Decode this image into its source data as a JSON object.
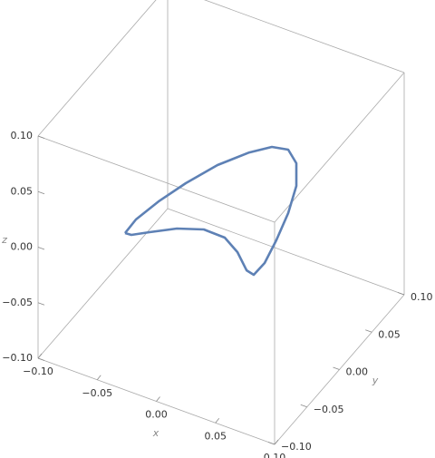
{
  "chart_data": {
    "type": "line3d",
    "x": [
      -0.0812,
      -0.072,
      -0.0529,
      -0.0299,
      -0.0031,
      0.0238,
      0.0429,
      0.0567,
      0.0636,
      0.0636,
      0.0567,
      0.0467,
      0.0368,
      0.0276,
      0.0215,
      0.0138,
      0.0031,
      -0.0146,
      -0.0375,
      -0.0605,
      -0.0759,
      -0.0812
    ],
    "y": [
      0,
      0,
      0,
      0,
      0,
      0,
      0,
      0,
      0,
      0,
      0,
      0,
      0,
      0,
      0,
      0,
      0,
      0,
      0,
      0,
      0,
      0
    ],
    "z": [
      -0.0474,
      -0.0316,
      -0.0079,
      0.0174,
      0.0441,
      0.0659,
      0.0783,
      0.0812,
      0.0716,
      0.0512,
      0.024,
      -0.0043,
      -0.0286,
      -0.0428,
      -0.0411,
      -0.0277,
      -0.0188,
      -0.0183,
      -0.0264,
      -0.0386,
      -0.047,
      -0.0474
    ],
    "color": "#5e81b5",
    "xlim": [
      -0.1,
      0.1
    ],
    "ylim": [
      -0.1,
      0.1
    ],
    "zlim": [
      -0.1,
      0.1
    ],
    "xticks": [
      {
        "value": -0.1,
        "label": "−0.10"
      },
      {
        "value": -0.05,
        "label": "−0.05"
      },
      {
        "value": 0,
        "label": "0.00"
      },
      0.05,
      {
        "value": 0.1,
        "label": "0.10"
      }
    ],
    "yticks": [
      {
        "value": -0.1,
        "label": "−0.10"
      },
      {
        "value": -0.05,
        "label": "−0.05"
      },
      {
        "value": 0,
        "label": "0.00"
      },
      0.05,
      {
        "value": 0.1,
        "label": "0.10"
      }
    ],
    "zticks": [
      {
        "value": -0.1,
        "label": "−0.10"
      },
      {
        "value": -0.05,
        "label": "−0.05"
      },
      {
        "value": 0,
        "label": "0.00"
      },
      0.05,
      {
        "value": 0.1,
        "label": "0.10"
      }
    ],
    "xlabel": "x",
    "ylabel": "y",
    "zlabel": "z"
  }
}
